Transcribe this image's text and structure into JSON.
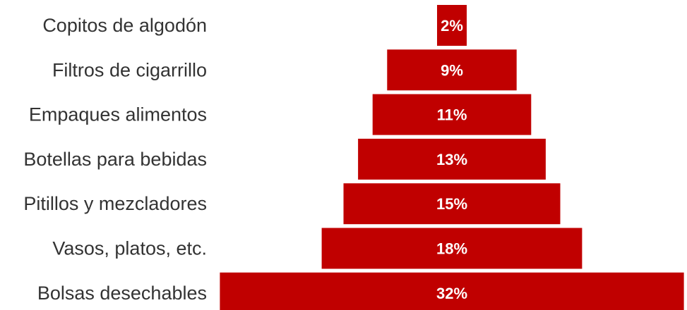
{
  "colors": {
    "bar": "#c00000",
    "bar_stroke": "#ffffff",
    "label": "#333333",
    "value_label": "#ffffff"
  },
  "chart_data": {
    "type": "bar",
    "orientation": "horizontal-centered",
    "categories": [
      "Copitos de algodón",
      "Filtros de cigarrillo",
      "Empaques alimentos",
      "Botellas para bebidas",
      "Pitillos y mezcladores",
      "Vasos, platos, etc.",
      "Bolsas desechables"
    ],
    "values": [
      2,
      9,
      11,
      13,
      15,
      18,
      32
    ],
    "value_labels": [
      "2%",
      "9%",
      "11%",
      "13%",
      "15%",
      "18%",
      "32%"
    ],
    "unit": "%",
    "title": "",
    "xlabel": "",
    "ylabel": "",
    "grid": false,
    "legend": "none"
  }
}
